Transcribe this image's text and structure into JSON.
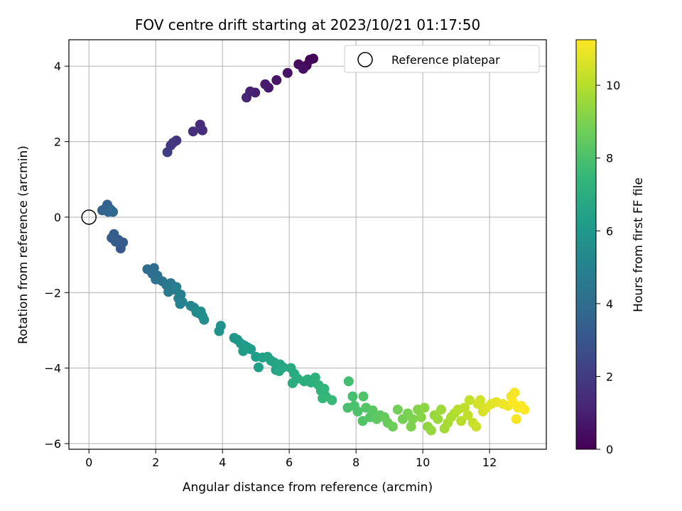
{
  "chart_data": {
    "type": "scatter",
    "title": "FOV centre drift starting at 2023/10/21 01:17:50",
    "xlabel": "Angular distance from reference (arcmin)",
    "ylabel": "Rotation from reference (arcmin)",
    "colorbar_label": "Hours from first FF file",
    "xlim": [
      -0.6,
      13.7
    ],
    "ylim": [
      -6.15,
      4.7
    ],
    "x_ticks": [
      0,
      2,
      4,
      6,
      8,
      10,
      12
    ],
    "y_ticks": [
      -6,
      -4,
      -2,
      0,
      2,
      4
    ],
    "colorbar_range": [
      0,
      11.25
    ],
    "colorbar_ticks": [
      0,
      2,
      4,
      6,
      8,
      10
    ],
    "colormap": "viridis",
    "grid": true,
    "legend": {
      "position": "top-right",
      "entries": [
        "Reference platepar"
      ]
    },
    "reference_point": {
      "x": 0,
      "y": 0
    },
    "anchors": [
      [
        6.8,
        4.18,
        0.0
      ],
      [
        6.5,
        3.95,
        0.25
      ],
      [
        6.0,
        3.8,
        0.55
      ],
      [
        5.3,
        3.5,
        0.85
      ],
      [
        4.75,
        3.2,
        1.1
      ],
      [
        3.4,
        2.35,
        1.4
      ],
      [
        2.9,
        2.2,
        1.7
      ],
      [
        2.4,
        1.8,
        2.0
      ],
      [
        1.0,
        -0.7,
        3.2
      ],
      [
        0.55,
        0.2,
        3.6
      ],
      [
        1.6,
        -1.3,
        4.0
      ],
      [
        2.2,
        -1.7,
        4.5
      ],
      [
        2.8,
        -2.15,
        5.0
      ],
      [
        3.5,
        -2.7,
        5.5
      ],
      [
        4.5,
        -3.4,
        6.0
      ],
      [
        5.4,
        -3.8,
        6.5
      ],
      [
        6.3,
        -4.2,
        7.0
      ],
      [
        7.0,
        -4.6,
        7.5
      ],
      [
        7.7,
        -5.0,
        8.0
      ],
      [
        8.5,
        -5.3,
        8.5
      ],
      [
        9.4,
        -5.4,
        9.0
      ],
      [
        10.2,
        -5.5,
        9.5
      ],
      [
        10.8,
        -5.4,
        10.0
      ],
      [
        11.5,
        -5.2,
        10.5
      ],
      [
        12.4,
        -5.0,
        11.0
      ],
      [
        13.0,
        -5.0,
        11.25
      ]
    ],
    "points": [
      {
        "x": 6.72,
        "y": 4.2,
        "t": 0.05
      },
      {
        "x": 6.62,
        "y": 4.17,
        "t": 0.15
      },
      {
        "x": 6.52,
        "y": 4.02,
        "t": 0.25
      },
      {
        "x": 6.28,
        "y": 4.05,
        "t": 0.35
      },
      {
        "x": 6.42,
        "y": 3.93,
        "t": 0.45
      },
      {
        "x": 5.95,
        "y": 3.82,
        "t": 0.55
      },
      {
        "x": 5.62,
        "y": 3.63,
        "t": 0.65
      },
      {
        "x": 5.38,
        "y": 3.43,
        "t": 0.75
      },
      {
        "x": 5.28,
        "y": 3.52,
        "t": 0.85
      },
      {
        "x": 4.98,
        "y": 3.3,
        "t": 0.95
      },
      {
        "x": 4.83,
        "y": 3.33,
        "t": 1.05
      },
      {
        "x": 4.72,
        "y": 3.17,
        "t": 1.15
      },
      {
        "x": 3.33,
        "y": 2.45,
        "t": 1.35
      },
      {
        "x": 3.4,
        "y": 2.3,
        "t": 1.45
      },
      {
        "x": 3.12,
        "y": 2.27,
        "t": 1.55
      },
      {
        "x": 2.62,
        "y": 2.03,
        "t": 1.7
      },
      {
        "x": 2.52,
        "y": 1.97,
        "t": 1.8
      },
      {
        "x": 2.45,
        "y": 1.9,
        "t": 1.9
      },
      {
        "x": 2.35,
        "y": 1.72,
        "t": 2.0
      },
      {
        "x": 0.95,
        "y": -0.83,
        "t": 3.1
      },
      {
        "x": 1.02,
        "y": -0.67,
        "t": 3.15
      },
      {
        "x": 0.88,
        "y": -0.6,
        "t": 3.2
      },
      {
        "x": 0.75,
        "y": -0.45,
        "t": 3.25
      },
      {
        "x": 0.68,
        "y": -0.55,
        "t": 3.3
      },
      {
        "x": 0.8,
        "y": -0.65,
        "t": 3.35
      },
      {
        "x": 0.55,
        "y": 0.33,
        "t": 3.5
      },
      {
        "x": 0.48,
        "y": 0.22,
        "t": 3.55
      },
      {
        "x": 0.4,
        "y": 0.18,
        "t": 3.6
      },
      {
        "x": 0.58,
        "y": 0.14,
        "t": 3.65
      },
      {
        "x": 0.65,
        "y": 0.2,
        "t": 3.7
      },
      {
        "x": 0.72,
        "y": 0.14,
        "t": 3.75
      },
      {
        "x": 1.75,
        "y": -1.38,
        "t": 3.9
      },
      {
        "x": 1.85,
        "y": -1.42,
        "t": 3.95
      },
      {
        "x": 1.95,
        "y": -1.35,
        "t": 4.0
      },
      {
        "x": 1.9,
        "y": -1.5,
        "t": 4.05
      },
      {
        "x": 2.05,
        "y": -1.55,
        "t": 4.15
      },
      {
        "x": 2.0,
        "y": -1.65,
        "t": 4.25
      },
      {
        "x": 2.2,
        "y": -1.7,
        "t": 4.35
      },
      {
        "x": 2.32,
        "y": -1.8,
        "t": 4.45
      },
      {
        "x": 2.45,
        "y": -1.75,
        "t": 4.55
      },
      {
        "x": 2.38,
        "y": -1.98,
        "t": 4.6
      },
      {
        "x": 2.55,
        "y": -1.92,
        "t": 4.7
      },
      {
        "x": 2.62,
        "y": -1.85,
        "t": 4.75
      },
      {
        "x": 2.75,
        "y": -2.05,
        "t": 4.85
      },
      {
        "x": 2.68,
        "y": -2.15,
        "t": 4.9
      },
      {
        "x": 2.8,
        "y": -2.25,
        "t": 5.0
      },
      {
        "x": 2.73,
        "y": -2.3,
        "t": 5.05
      },
      {
        "x": 3.05,
        "y": -2.35,
        "t": 5.15
      },
      {
        "x": 3.15,
        "y": -2.4,
        "t": 5.25
      },
      {
        "x": 3.22,
        "y": -2.52,
        "t": 5.35
      },
      {
        "x": 3.3,
        "y": -2.55,
        "t": 5.4
      },
      {
        "x": 3.4,
        "y": -2.62,
        "t": 5.45
      },
      {
        "x": 3.45,
        "y": -2.72,
        "t": 5.55
      },
      {
        "x": 3.35,
        "y": -2.5,
        "t": 5.5
      },
      {
        "x": 3.95,
        "y": -2.88,
        "t": 5.7
      },
      {
        "x": 3.9,
        "y": -3.02,
        "t": 5.75
      },
      {
        "x": 4.35,
        "y": -3.2,
        "t": 5.9
      },
      {
        "x": 4.45,
        "y": -3.25,
        "t": 5.95
      },
      {
        "x": 4.55,
        "y": -3.35,
        "t": 6.0
      },
      {
        "x": 4.65,
        "y": -3.4,
        "t": 6.05
      },
      {
        "x": 4.75,
        "y": -3.45,
        "t": 6.1
      },
      {
        "x": 4.62,
        "y": -3.55,
        "t": 6.15
      },
      {
        "x": 4.85,
        "y": -3.5,
        "t": 6.2
      },
      {
        "x": 5.0,
        "y": -3.7,
        "t": 6.3
      },
      {
        "x": 5.08,
        "y": -3.98,
        "t": 6.35
      },
      {
        "x": 5.2,
        "y": -3.72,
        "t": 6.4
      },
      {
        "x": 5.35,
        "y": -3.7,
        "t": 6.45
      },
      {
        "x": 5.45,
        "y": -3.8,
        "t": 6.5
      },
      {
        "x": 5.55,
        "y": -3.85,
        "t": 6.55
      },
      {
        "x": 5.6,
        "y": -4.05,
        "t": 6.6
      },
      {
        "x": 5.72,
        "y": -3.9,
        "t": 6.65
      },
      {
        "x": 5.82,
        "y": -3.98,
        "t": 6.7
      },
      {
        "x": 5.7,
        "y": -4.08,
        "t": 6.72
      },
      {
        "x": 6.05,
        "y": -4.0,
        "t": 6.8
      },
      {
        "x": 6.15,
        "y": -4.15,
        "t": 6.85
      },
      {
        "x": 6.1,
        "y": -4.4,
        "t": 6.9
      },
      {
        "x": 6.25,
        "y": -4.28,
        "t": 6.95
      },
      {
        "x": 6.45,
        "y": -4.35,
        "t": 7.0
      },
      {
        "x": 6.55,
        "y": -4.3,
        "t": 7.05
      },
      {
        "x": 6.65,
        "y": -4.38,
        "t": 7.1
      },
      {
        "x": 6.78,
        "y": -4.25,
        "t": 7.15
      },
      {
        "x": 6.88,
        "y": -4.45,
        "t": 7.25
      },
      {
        "x": 6.95,
        "y": -4.6,
        "t": 7.3
      },
      {
        "x": 7.05,
        "y": -4.55,
        "t": 7.35
      },
      {
        "x": 7.1,
        "y": -4.75,
        "t": 7.4
      },
      {
        "x": 7.0,
        "y": -4.8,
        "t": 7.45
      },
      {
        "x": 7.28,
        "y": -4.85,
        "t": 7.55
      },
      {
        "x": 7.78,
        "y": -4.35,
        "t": 7.8
      },
      {
        "x": 7.75,
        "y": -5.05,
        "t": 7.95
      },
      {
        "x": 7.9,
        "y": -4.75,
        "t": 7.9
      },
      {
        "x": 7.95,
        "y": -5.0,
        "t": 8.0
      },
      {
        "x": 8.05,
        "y": -5.15,
        "t": 8.05
      },
      {
        "x": 8.22,
        "y": -4.75,
        "t": 8.1
      },
      {
        "x": 8.2,
        "y": -5.4,
        "t": 8.15
      },
      {
        "x": 8.3,
        "y": -5.05,
        "t": 8.2
      },
      {
        "x": 8.42,
        "y": -5.3,
        "t": 8.25
      },
      {
        "x": 8.5,
        "y": -5.12,
        "t": 8.3
      },
      {
        "x": 8.62,
        "y": -5.35,
        "t": 8.4
      },
      {
        "x": 8.72,
        "y": -5.25,
        "t": 8.45
      },
      {
        "x": 8.85,
        "y": -5.3,
        "t": 8.55
      },
      {
        "x": 8.95,
        "y": -5.45,
        "t": 8.6
      },
      {
        "x": 9.1,
        "y": -5.55,
        "t": 8.7
      },
      {
        "x": 9.25,
        "y": -5.1,
        "t": 8.8
      },
      {
        "x": 9.4,
        "y": -5.35,
        "t": 8.85
      },
      {
        "x": 9.55,
        "y": -5.2,
        "t": 8.95
      },
      {
        "x": 9.65,
        "y": -5.55,
        "t": 9.0
      },
      {
        "x": 9.7,
        "y": -5.35,
        "t": 9.05
      },
      {
        "x": 9.85,
        "y": -5.1,
        "t": 9.15
      },
      {
        "x": 9.95,
        "y": -5.3,
        "t": 9.2
      },
      {
        "x": 10.05,
        "y": -5.05,
        "t": 9.3
      },
      {
        "x": 10.15,
        "y": -5.55,
        "t": 9.35
      },
      {
        "x": 10.25,
        "y": -5.65,
        "t": 9.45
      },
      {
        "x": 10.35,
        "y": -5.25,
        "t": 9.5
      },
      {
        "x": 10.45,
        "y": -5.35,
        "t": 9.55
      },
      {
        "x": 10.55,
        "y": -5.1,
        "t": 9.6
      },
      {
        "x": 10.65,
        "y": -5.6,
        "t": 9.7
      },
      {
        "x": 10.75,
        "y": -5.45,
        "t": 9.75
      },
      {
        "x": 10.85,
        "y": -5.3,
        "t": 9.85
      },
      {
        "x": 10.95,
        "y": -5.2,
        "t": 9.9
      },
      {
        "x": 11.05,
        "y": -5.1,
        "t": 10.0
      },
      {
        "x": 11.15,
        "y": -5.4,
        "t": 10.05
      },
      {
        "x": 11.25,
        "y": -5.05,
        "t": 10.15
      },
      {
        "x": 11.35,
        "y": -5.25,
        "t": 10.2
      },
      {
        "x": 11.4,
        "y": -4.85,
        "t": 10.25
      },
      {
        "x": 11.5,
        "y": -5.45,
        "t": 10.3
      },
      {
        "x": 11.6,
        "y": -5.55,
        "t": 10.35
      },
      {
        "x": 11.65,
        "y": -4.95,
        "t": 10.45
      },
      {
        "x": 11.72,
        "y": -4.85,
        "t": 10.5
      },
      {
        "x": 11.8,
        "y": -5.15,
        "t": 10.55
      },
      {
        "x": 11.9,
        "y": -5.05,
        "t": 10.65
      },
      {
        "x": 12.05,
        "y": -4.95,
        "t": 10.75
      },
      {
        "x": 12.2,
        "y": -4.9,
        "t": 10.85
      },
      {
        "x": 12.4,
        "y": -4.95,
        "t": 10.95
      },
      {
        "x": 12.55,
        "y": -5.0,
        "t": 11.0
      },
      {
        "x": 12.65,
        "y": -4.75,
        "t": 11.05
      },
      {
        "x": 12.75,
        "y": -4.65,
        "t": 11.1
      },
      {
        "x": 12.8,
        "y": -5.35,
        "t": 11.15
      },
      {
        "x": 12.85,
        "y": -5.05,
        "t": 11.18
      },
      {
        "x": 12.95,
        "y": -5.0,
        "t": 11.2
      },
      {
        "x": 13.05,
        "y": -5.1,
        "t": 11.22
      },
      {
        "x": 12.7,
        "y": -4.9,
        "t": 11.24
      }
    ]
  },
  "colors": {
    "viridis_stops": [
      "#440154",
      "#482878",
      "#3e4989",
      "#31688e",
      "#26828e",
      "#1f9e89",
      "#35b779",
      "#6ece58",
      "#b5de2b",
      "#fde725"
    ],
    "grid": "#b0b0b0",
    "axis": "#000000"
  }
}
